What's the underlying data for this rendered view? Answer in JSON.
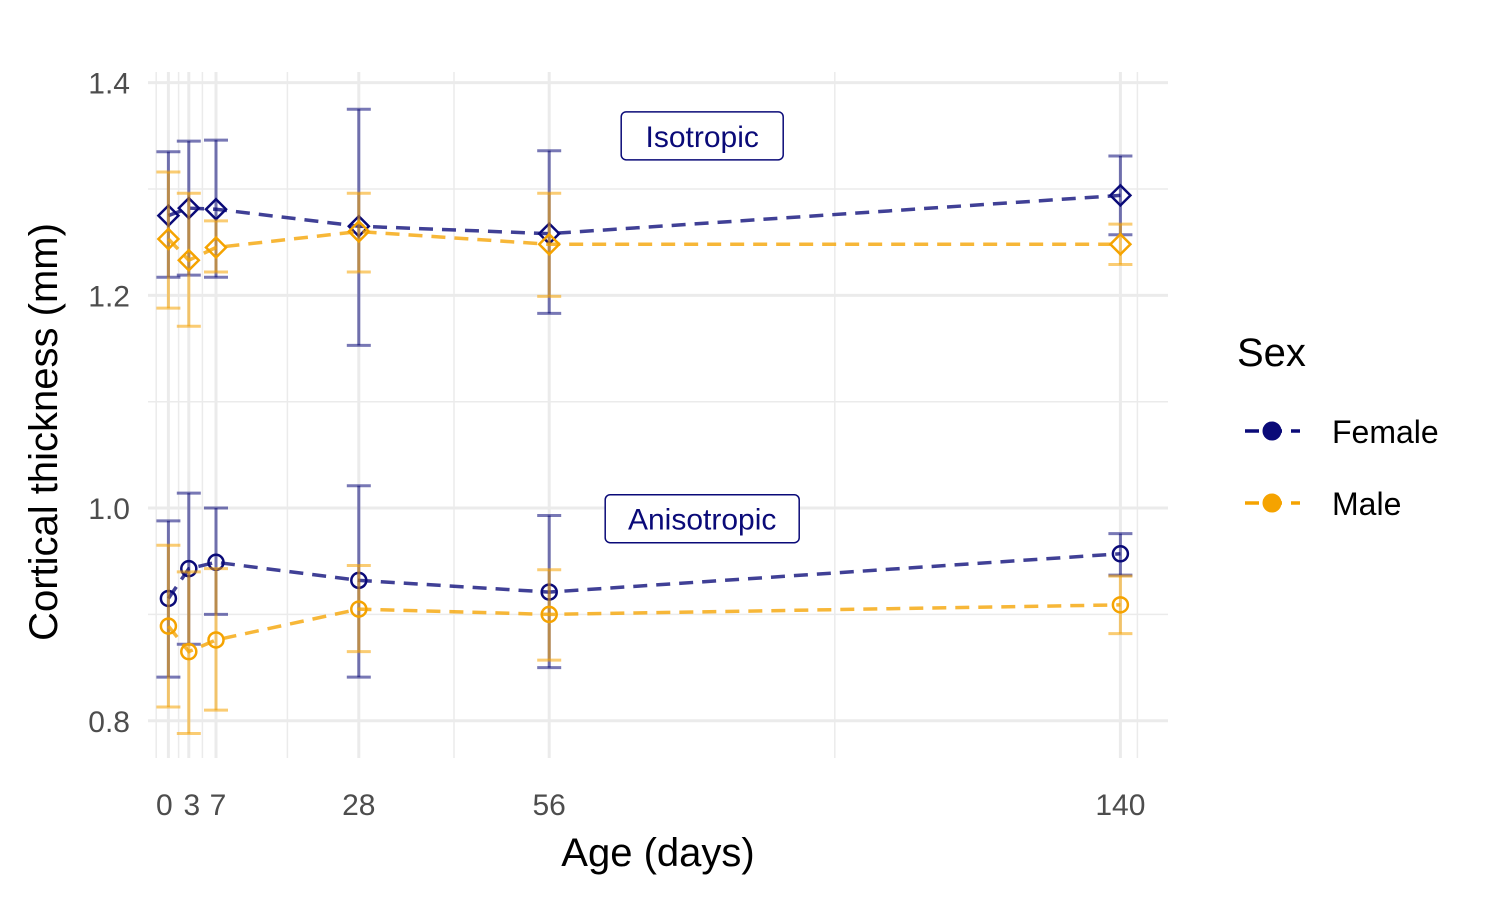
{
  "chart_data": {
    "type": "line",
    "xlabel": "Age (days)",
    "ylabel": "Cortical thickness (mm)",
    "x_ticks": [
      0,
      3,
      7,
      28,
      56,
      140
    ],
    "y_ticks": [
      0.8,
      1.0,
      1.2,
      1.4
    ],
    "xlim": [
      -3,
      147
    ],
    "ylim": [
      0.765,
      1.41
    ],
    "grid": true,
    "legend": {
      "title": "Sex",
      "position": "right",
      "entries": [
        {
          "label": "Female",
          "color": "#0a0a78"
        },
        {
          "label": "Male",
          "color": "#f5a300"
        }
      ]
    },
    "annotations": [
      {
        "label": "Isotropic",
        "x": 56,
        "y": 1.35,
        "color": "#0a0a78"
      },
      {
        "label": "Anisotropic",
        "x": 56,
        "y": 0.99,
        "color": "#0a0a78"
      }
    ],
    "series": [
      {
        "name": "Female",
        "group": "Isotropic",
        "marker": "diamond",
        "color": "#0a0a78",
        "x": [
          0,
          3,
          7,
          28,
          56,
          140
        ],
        "y": [
          1.275,
          1.282,
          1.281,
          1.265,
          1.258,
          1.294
        ],
        "err_low": [
          1.217,
          1.219,
          1.217,
          1.153,
          1.183,
          1.257
        ],
        "err_high": [
          1.335,
          1.345,
          1.346,
          1.375,
          1.336,
          1.331
        ]
      },
      {
        "name": "Male",
        "group": "Isotropic",
        "marker": "diamond",
        "color": "#f5a300",
        "x": [
          0,
          3,
          7,
          28,
          56,
          140
        ],
        "y": [
          1.253,
          1.233,
          1.245,
          1.26,
          1.248,
          1.248
        ],
        "err_low": [
          1.188,
          1.171,
          1.222,
          1.222,
          1.199,
          1.229
        ],
        "err_high": [
          1.316,
          1.296,
          1.27,
          1.296,
          1.296,
          1.267
        ]
      },
      {
        "name": "Female",
        "group": "Anisotropic",
        "marker": "circle",
        "color": "#0a0a78",
        "x": [
          0,
          3,
          7,
          28,
          56,
          140
        ],
        "y": [
          0.915,
          0.943,
          0.949,
          0.932,
          0.921,
          0.957
        ],
        "err_low": [
          0.841,
          0.872,
          0.9,
          0.841,
          0.85,
          0.937
        ],
        "err_high": [
          0.988,
          1.014,
          1.0,
          1.021,
          0.993,
          0.976
        ]
      },
      {
        "name": "Male",
        "group": "Anisotropic",
        "marker": "circle",
        "color": "#f5a300",
        "x": [
          0,
          3,
          7,
          28,
          56,
          140
        ],
        "y": [
          0.889,
          0.865,
          0.876,
          0.905,
          0.9,
          0.909
        ],
        "err_low": [
          0.813,
          0.788,
          0.81,
          0.865,
          0.857,
          0.882
        ],
        "err_high": [
          0.965,
          0.94,
          0.943,
          0.946,
          0.942,
          0.936
        ]
      }
    ]
  }
}
